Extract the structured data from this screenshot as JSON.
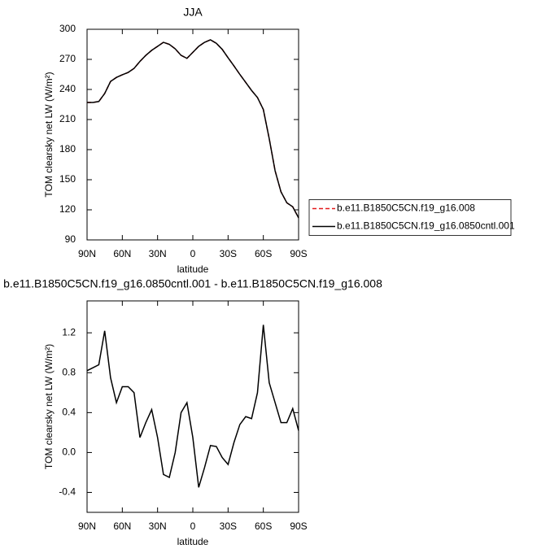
{
  "chart_data": [
    {
      "type": "line",
      "title": "JJA",
      "xlabel": "latitude",
      "ylabel": "TOM clearsky net LW (W/m²)",
      "x": [
        90,
        85,
        80,
        75,
        70,
        65,
        60,
        55,
        50,
        45,
        40,
        35,
        30,
        25,
        20,
        15,
        10,
        5,
        0,
        -5,
        -10,
        -15,
        -20,
        -25,
        -30,
        -35,
        -40,
        -45,
        -50,
        -55,
        -60,
        -65,
        -70,
        -75,
        -80,
        -85,
        -90
      ],
      "series": [
        {
          "name": "b.e11.B1850C5CN.f19_g16.008",
          "color": "#e41a1c",
          "dash": true,
          "values": [
            227,
            227,
            228,
            236,
            248,
            252,
            254.6,
            257,
            261,
            268,
            274,
            279,
            283,
            287,
            285,
            280.5,
            274,
            271,
            277,
            283,
            287,
            289.5,
            286,
            280,
            271.6,
            263.5,
            255,
            247,
            239,
            232,
            220,
            191,
            159,
            138,
            127,
            123,
            112
          ]
        },
        {
          "name": "b.e11.B1850C5CN.f19_g16.0850cntl.001",
          "color": "#000000",
          "dash": false,
          "values": [
            227,
            227,
            228,
            236,
            248,
            252,
            254.6,
            257,
            261,
            268,
            274,
            279,
            283,
            287,
            285,
            280.5,
            274,
            271,
            277,
            283,
            287,
            289.5,
            286,
            280,
            271.6,
            263.5,
            255,
            247,
            239,
            232,
            220,
            191,
            159,
            138,
            127,
            123,
            112
          ]
        }
      ],
      "xlim": [
        90,
        -90
      ],
      "xticks": [
        {
          "value": 90,
          "label": "90N"
        },
        {
          "value": 60,
          "label": "60N"
        },
        {
          "value": 30,
          "label": "30N"
        },
        0,
        {
          "value": -30,
          "label": "30S"
        },
        {
          "value": -60,
          "label": "60S"
        },
        {
          "value": -90,
          "label": "90S"
        }
      ],
      "ylim": [
        90,
        300
      ],
      "yticks": [
        90,
        120,
        150,
        180,
        210,
        240,
        270,
        300
      ],
      "legend": "right"
    },
    {
      "type": "line",
      "title": "b.e11.B1850C5CN.f19_g16.0850cntl.001 - b.e11.B1850C5CN.f19_g16.008",
      "xlabel": "latitude",
      "ylabel": "TOM clearsky net LW (W/m²)",
      "x": [
        90,
        85,
        80,
        75,
        70,
        65,
        60,
        55,
        50,
        45,
        40,
        35,
        30,
        25,
        20,
        15,
        10,
        5,
        0,
        -5,
        -10,
        -15,
        -20,
        -25,
        -30,
        -35,
        -40,
        -45,
        -50,
        -55,
        -60,
        -65,
        -70,
        -75,
        -80,
        -85,
        -90
      ],
      "series": [
        {
          "color": "#000000",
          "dash": false,
          "values": [
            0.82,
            0.85,
            0.88,
            1.22,
            0.75,
            0.5,
            0.66,
            0.66,
            0.6,
            0.15,
            0.3,
            0.43,
            0.15,
            -0.22,
            -0.25,
            0.0,
            0.4,
            0.5,
            0.15,
            -0.35,
            -0.15,
            0.07,
            0.06,
            -0.05,
            -0.12,
            0.1,
            0.28,
            0.36,
            0.34,
            0.6,
            1.28,
            0.7,
            0.5,
            0.3,
            0.3,
            0.44,
            0.22
          ]
        }
      ],
      "xlim": [
        90,
        -90
      ],
      "xticks": [
        {
          "value": 90,
          "label": "90N"
        },
        {
          "value": 60,
          "label": "60N"
        },
        {
          "value": 30,
          "label": "30N"
        },
        0,
        {
          "value": -30,
          "label": "30S"
        },
        {
          "value": -60,
          "label": "60S"
        },
        {
          "value": -90,
          "label": "90S"
        }
      ],
      "ylim": [
        -0.6,
        1.52
      ],
      "yticks": [
        -0.4,
        {
          "value": 0,
          "label": "0.0"
        },
        0.4,
        0.8,
        1.2
      ]
    }
  ]
}
